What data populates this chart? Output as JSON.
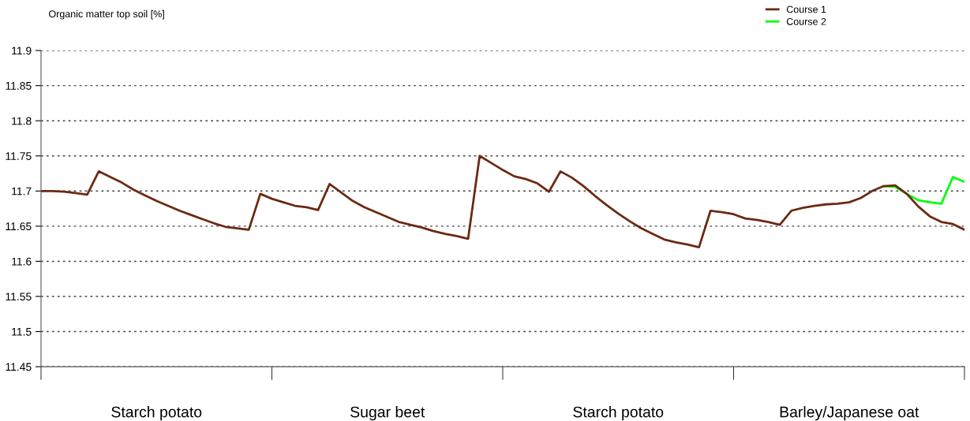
{
  "chart_data": {
    "type": "line",
    "ylabel": "Organic matter top soil [%]",
    "categories": [
      null,
      null,
      null,
      null,
      null,
      null,
      null,
      null,
      null,
      null,
      "Starch potato",
      null,
      null,
      null,
      null,
      null,
      null,
      null,
      null,
      null,
      null,
      null,
      null,
      null,
      null,
      null,
      null,
      null,
      null,
      null,
      "Sugar beet",
      null,
      null,
      null,
      null,
      null,
      null,
      null,
      null,
      null,
      null,
      null,
      null,
      null,
      null,
      null,
      null,
      null,
      null,
      null,
      "Starch potato",
      null,
      null,
      null,
      null,
      null,
      null,
      null,
      null,
      null,
      null,
      null,
      null,
      null,
      null,
      null,
      null,
      null,
      null,
      null,
      "Barley/Japanese oat",
      null,
      null,
      null,
      null,
      null,
      null,
      null,
      null,
      null,
      null
    ],
    "ylim": [
      11.45,
      11.9
    ],
    "yticks": [
      11.45,
      11.5,
      11.55,
      11.6,
      11.65,
      11.7,
      11.75,
      11.8,
      11.85,
      11.9
    ],
    "grid": "y",
    "legend": "top right",
    "line_style": "solid",
    "marker": "none",
    "series": [
      {
        "name": "Course 2",
        "color": "#00ff00",
        "values": [
          null,
          null,
          null,
          null,
          null,
          null,
          null,
          null,
          null,
          null,
          null,
          null,
          null,
          null,
          null,
          null,
          null,
          null,
          null,
          null,
          null,
          null,
          null,
          null,
          null,
          null,
          null,
          null,
          null,
          null,
          null,
          null,
          null,
          null,
          null,
          null,
          null,
          null,
          null,
          null,
          null,
          null,
          null,
          null,
          null,
          null,
          null,
          null,
          null,
          null,
          null,
          null,
          null,
          null,
          null,
          null,
          null,
          null,
          null,
          null,
          null,
          null,
          null,
          null,
          null,
          null,
          null,
          null,
          null,
          null,
          null,
          null,
          null,
          11.707,
          11.706,
          11.696,
          11.687,
          11.684,
          11.682,
          11.72,
          11.713
        ]
      },
      {
        "name": "Course 1",
        "color": "#6b2a12",
        "values": [
          11.7,
          11.7,
          11.699,
          11.697,
          11.695,
          11.728,
          11.72,
          11.712,
          11.702,
          11.694,
          11.686,
          11.679,
          11.672,
          11.666,
          11.66,
          11.654,
          11.649,
          11.647,
          11.645,
          11.696,
          11.689,
          11.684,
          11.679,
          11.677,
          11.673,
          11.71,
          11.698,
          11.686,
          11.677,
          11.67,
          11.663,
          11.656,
          11.652,
          11.648,
          11.643,
          11.639,
          11.636,
          11.632,
          11.75,
          11.74,
          11.73,
          11.721,
          11.717,
          11.711,
          11.699,
          11.728,
          11.719,
          11.707,
          11.693,
          11.68,
          11.668,
          11.657,
          11.647,
          11.639,
          11.631,
          11.627,
          11.624,
          11.62,
          11.672,
          11.67,
          11.667,
          11.661,
          11.659,
          11.656,
          11.652,
          11.672,
          11.676,
          11.679,
          11.681,
          11.682,
          11.684,
          11.69,
          11.7,
          11.707,
          11.708,
          11.696,
          11.678,
          11.664,
          11.656,
          11.653,
          11.645
        ]
      }
    ]
  }
}
